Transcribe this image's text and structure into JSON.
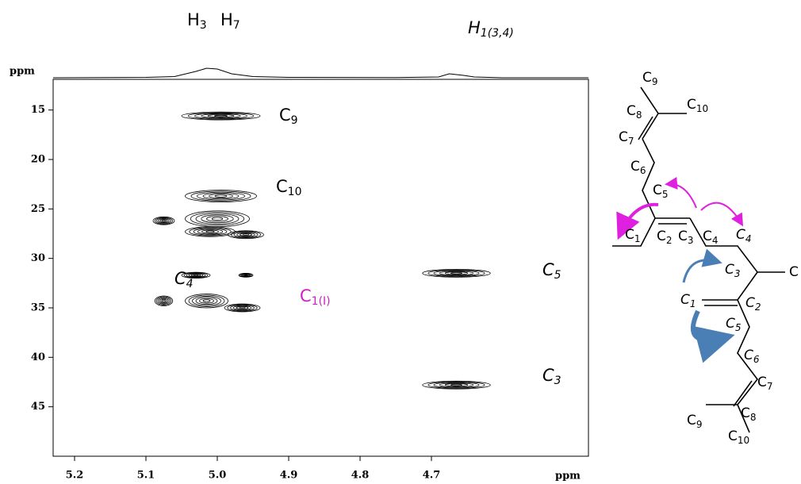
{
  "chart_data": {
    "type": "contour",
    "x_label": "ppm",
    "y_label": "ppm",
    "xlim": [
      5.23,
      4.48
    ],
    "ylim": [
      11.9,
      50
    ],
    "xticks": [
      4.7,
      4.8,
      4.9,
      {
        "value": 5,
        "label": "5.0"
      },
      5.1,
      5.2
    ],
    "yticks": [
      15,
      20,
      25,
      30,
      35,
      40,
      45
    ],
    "contour_color": "#000000",
    "peaks": {
      "x": [
        4.995,
        4.995,
        5.0,
        5.01,
        4.96,
        5.075,
        5.03,
        4.96,
        5.015,
        4.965,
        5.075,
        4.665,
        4.665
      ],
      "y": [
        15.6,
        23.7,
        26.0,
        27.3,
        27.6,
        26.2,
        31.7,
        31.7,
        34.3,
        35.0,
        34.3,
        31.5,
        42.8
      ],
      "dx": [
        0.11,
        0.1,
        0.09,
        0.07,
        0.05,
        0.03,
        0.04,
        0.02,
        0.06,
        0.05,
        0.025,
        0.095,
        0.095
      ],
      "dy": [
        0.8,
        1.2,
        1.6,
        1.0,
        0.8,
        0.8,
        0.6,
        0.4,
        1.4,
        0.8,
        1.0,
        0.8,
        0.8
      ]
    },
    "projection": {
      "x": [
        5.23,
        5.1,
        5.06,
        5.03,
        5.015,
        5.0,
        4.98,
        4.95,
        4.9,
        4.75,
        4.69,
        4.675,
        4.665,
        4.655,
        4.64,
        4.6,
        4.48
      ],
      "values": [
        0,
        0.5,
        1.5,
        8,
        12,
        11,
        5,
        1.5,
        0.5,
        0.3,
        1,
        5,
        4,
        3,
        1,
        0,
        0
      ],
      "ylim": [
        0,
        14
      ]
    },
    "annotations": [
      {
        "base": "H",
        "sub": "3"
      },
      {
        "base": "H",
        "sub": "7"
      },
      {
        "base": "H",
        "sub": "1(3,4)"
      },
      {
        "base": "C",
        "sub": "9"
      },
      {
        "base": "C",
        "sub": "10"
      },
      {
        "base": "C",
        "sub": "4"
      },
      {
        "base": "C",
        "sub": "1(I)"
      },
      {
        "base": "C",
        "sub": "5"
      },
      {
        "base": "C",
        "sub": "3"
      }
    ]
  },
  "structure": {
    "labels": [
      {
        "base": "C",
        "sub": "9"
      },
      {
        "base": "C",
        "sub": "8"
      },
      {
        "base": "C",
        "sub": "10"
      },
      {
        "base": "C",
        "sub": "7"
      },
      {
        "base": "C",
        "sub": "6"
      },
      {
        "base": "C",
        "sub": "5"
      },
      {
        "base": "C",
        "sub": "1"
      },
      {
        "base": "C",
        "sub": "2"
      },
      {
        "base": "C",
        "sub": "3"
      },
      {
        "base": "C",
        "sub": "4"
      },
      {
        "base": "C",
        "sub": "4"
      },
      {
        "base": "C",
        "sub": "3"
      },
      {
        "base": "C"
      },
      {
        "base": "C",
        "sub": "1"
      },
      {
        "base": "C",
        "sub": "2"
      },
      {
        "base": "C",
        "sub": "5"
      },
      {
        "base": "C",
        "sub": "6"
      },
      {
        "base": "C",
        "sub": "7"
      },
      {
        "base": "C",
        "sub": "8"
      },
      {
        "base": "C",
        "sub": "9"
      },
      {
        "base": "C",
        "sub": "10"
      }
    ]
  }
}
